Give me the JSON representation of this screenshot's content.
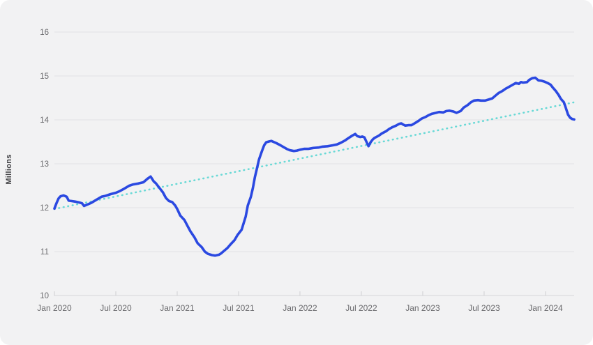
{
  "chart_data": {
    "type": "line",
    "title": "",
    "xlabel": "",
    "ylabel": "Millions",
    "ylim": [
      10,
      16
    ],
    "xlim_months": [
      0,
      50.8
    ],
    "grid": "horizontal",
    "legend": "none",
    "y_ticks": [
      10,
      11,
      12,
      13,
      14,
      15,
      16
    ],
    "x_ticks": [
      {
        "m": 0,
        "label": "Jan 2020"
      },
      {
        "m": 6,
        "label": "Jul 2020"
      },
      {
        "m": 12,
        "label": "Jan 2021"
      },
      {
        "m": 18,
        "label": "Jul 2021"
      },
      {
        "m": 24,
        "label": "Jan 2022"
      },
      {
        "m": 30,
        "label": "Jul 2022"
      },
      {
        "m": 36,
        "label": "Jan 2023"
      },
      {
        "m": 42,
        "label": "Jul 2023"
      },
      {
        "m": 48,
        "label": "Jan 2024"
      }
    ],
    "colors": {
      "main": "#2b49e1",
      "trend": "#69d9d6",
      "background": "#f2f2f3",
      "gridline": "#e3e3e5",
      "axis_text": "#6b6b6e"
    },
    "series": {
      "main": {
        "style": "solid",
        "points": [
          [
            0,
            11.98
          ],
          [
            0.2,
            12.1
          ],
          [
            0.4,
            12.21
          ],
          [
            0.6,
            12.26
          ],
          [
            0.9,
            12.28
          ],
          [
            1.2,
            12.25
          ],
          [
            1.4,
            12.16
          ],
          [
            1.7,
            12.15
          ],
          [
            2.0,
            12.14
          ],
          [
            2.4,
            12.12
          ],
          [
            2.7,
            12.1
          ],
          [
            2.9,
            12.04
          ],
          [
            3.2,
            12.07
          ],
          [
            3.6,
            12.11
          ],
          [
            4.1,
            12.18
          ],
          [
            4.6,
            12.25
          ],
          [
            5.0,
            12.27
          ],
          [
            5.5,
            12.31
          ],
          [
            6.0,
            12.34
          ],
          [
            6.4,
            12.38
          ],
          [
            6.8,
            12.43
          ],
          [
            7.3,
            12.5
          ],
          [
            7.7,
            12.53
          ],
          [
            8.2,
            12.55
          ],
          [
            8.7,
            12.58
          ],
          [
            9.1,
            12.66
          ],
          [
            9.4,
            12.71
          ],
          [
            9.7,
            12.6
          ],
          [
            9.9,
            12.56
          ],
          [
            10.3,
            12.44
          ],
          [
            10.6,
            12.35
          ],
          [
            10.9,
            12.22
          ],
          [
            11.2,
            12.15
          ],
          [
            11.5,
            12.13
          ],
          [
            11.8,
            12.05
          ],
          [
            12.0,
            11.97
          ],
          [
            12.3,
            11.82
          ],
          [
            12.7,
            11.72
          ],
          [
            13.0,
            11.59
          ],
          [
            13.3,
            11.46
          ],
          [
            13.7,
            11.32
          ],
          [
            14.0,
            11.19
          ],
          [
            14.4,
            11.1
          ],
          [
            14.7,
            11.0
          ],
          [
            15.0,
            10.95
          ],
          [
            15.4,
            10.92
          ],
          [
            15.7,
            10.91
          ],
          [
            16.1,
            10.93
          ],
          [
            16.3,
            10.96
          ],
          [
            16.6,
            11.02
          ],
          [
            16.9,
            11.08
          ],
          [
            17.2,
            11.16
          ],
          [
            17.6,
            11.26
          ],
          [
            17.9,
            11.38
          ],
          [
            18.3,
            11.5
          ],
          [
            18.5,
            11.65
          ],
          [
            18.7,
            11.8
          ],
          [
            18.9,
            12.05
          ],
          [
            19.2,
            12.25
          ],
          [
            19.4,
            12.45
          ],
          [
            19.6,
            12.7
          ],
          [
            19.8,
            12.9
          ],
          [
            20.0,
            13.1
          ],
          [
            20.3,
            13.3
          ],
          [
            20.5,
            13.42
          ],
          [
            20.7,
            13.49
          ],
          [
            21.0,
            13.51
          ],
          [
            21.2,
            13.52
          ],
          [
            21.5,
            13.49
          ],
          [
            21.7,
            13.47
          ],
          [
            22.1,
            13.42
          ],
          [
            22.4,
            13.38
          ],
          [
            22.7,
            13.34
          ],
          [
            23.0,
            13.31
          ],
          [
            23.4,
            13.29
          ],
          [
            23.7,
            13.3
          ],
          [
            24.0,
            13.32
          ],
          [
            24.4,
            13.34
          ],
          [
            24.8,
            13.34
          ],
          [
            25.3,
            13.36
          ],
          [
            25.8,
            13.37
          ],
          [
            26.2,
            13.39
          ],
          [
            26.7,
            13.4
          ],
          [
            27.2,
            13.42
          ],
          [
            27.6,
            13.44
          ],
          [
            28.0,
            13.48
          ],
          [
            28.4,
            13.53
          ],
          [
            28.7,
            13.58
          ],
          [
            29.1,
            13.64
          ],
          [
            29.4,
            13.68
          ],
          [
            29.6,
            13.63
          ],
          [
            29.9,
            13.61
          ],
          [
            30.1,
            13.62
          ],
          [
            30.3,
            13.6
          ],
          [
            30.5,
            13.5
          ],
          [
            30.7,
            13.4
          ],
          [
            30.9,
            13.49
          ],
          [
            31.1,
            13.55
          ],
          [
            31.3,
            13.59
          ],
          [
            31.7,
            13.64
          ],
          [
            32.0,
            13.69
          ],
          [
            32.4,
            13.74
          ],
          [
            32.7,
            13.79
          ],
          [
            33.0,
            13.83
          ],
          [
            33.4,
            13.87
          ],
          [
            33.7,
            13.91
          ],
          [
            33.9,
            13.92
          ],
          [
            34.1,
            13.89
          ],
          [
            34.3,
            13.87
          ],
          [
            34.6,
            13.88
          ],
          [
            34.9,
            13.88
          ],
          [
            35.2,
            13.92
          ],
          [
            35.6,
            13.98
          ],
          [
            35.9,
            14.03
          ],
          [
            36.3,
            14.07
          ],
          [
            36.6,
            14.11
          ],
          [
            36.9,
            14.14
          ],
          [
            37.3,
            14.16
          ],
          [
            37.6,
            14.18
          ],
          [
            38.0,
            14.17
          ],
          [
            38.3,
            14.2
          ],
          [
            38.6,
            14.21
          ],
          [
            39.0,
            14.19
          ],
          [
            39.3,
            14.16
          ],
          [
            39.7,
            14.2
          ],
          [
            40.0,
            14.28
          ],
          [
            40.4,
            14.34
          ],
          [
            40.7,
            14.4
          ],
          [
            41.0,
            14.44
          ],
          [
            41.4,
            14.45
          ],
          [
            41.7,
            14.44
          ],
          [
            42.1,
            14.44
          ],
          [
            42.4,
            14.46
          ],
          [
            42.8,
            14.49
          ],
          [
            43.1,
            14.55
          ],
          [
            43.4,
            14.61
          ],
          [
            43.8,
            14.66
          ],
          [
            44.1,
            14.71
          ],
          [
            44.5,
            14.76
          ],
          [
            44.8,
            14.8
          ],
          [
            45.1,
            14.84
          ],
          [
            45.4,
            14.82
          ],
          [
            45.6,
            14.86
          ],
          [
            45.8,
            14.85
          ],
          [
            46.2,
            14.86
          ],
          [
            46.4,
            14.91
          ],
          [
            46.7,
            14.95
          ],
          [
            47.0,
            14.96
          ],
          [
            47.3,
            14.9
          ],
          [
            47.6,
            14.89
          ],
          [
            47.9,
            14.87
          ],
          [
            48.2,
            14.84
          ],
          [
            48.5,
            14.8
          ],
          [
            48.7,
            14.74
          ],
          [
            49.0,
            14.66
          ],
          [
            49.3,
            14.56
          ],
          [
            49.5,
            14.48
          ],
          [
            49.8,
            14.4
          ],
          [
            50.0,
            14.26
          ],
          [
            50.2,
            14.12
          ],
          [
            50.4,
            14.05
          ],
          [
            50.6,
            14.02
          ],
          [
            50.8,
            14.01
          ]
        ]
      },
      "trend": {
        "style": "dotted",
        "points": [
          [
            0,
            11.97
          ],
          [
            50.8,
            14.4
          ]
        ]
      }
    }
  }
}
